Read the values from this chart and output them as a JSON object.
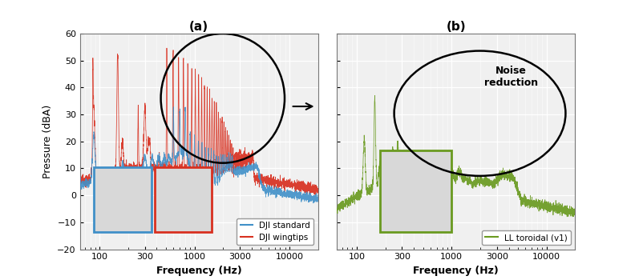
{
  "title_a": "(a)",
  "title_b": "(b)",
  "ylabel": "Pressure (dBA)",
  "xlabel": "Frequency (Hz)",
  "ylim": [
    -20,
    60
  ],
  "xlim": [
    60,
    20000
  ],
  "xticks": [
    100,
    300,
    1000,
    3000,
    10000
  ],
  "xtick_labels": [
    "100",
    "300",
    "1000",
    "3000",
    "10000"
  ],
  "yticks": [
    -20,
    -10,
    0,
    10,
    20,
    30,
    40,
    50,
    60
  ],
  "color_blue": "#4090c8",
  "color_red": "#d83020",
  "color_green": "#6a9a20",
  "legend_a": [
    "DJI standard",
    "DJI wingtips"
  ],
  "legend_b": [
    "LL toroidal (v1)"
  ],
  "box_blue_color": "#4090c8",
  "box_red_color": "#d83020",
  "box_green_color": "#6a9a20",
  "noise_reduction_text": "Noise\nreduction",
  "bg_color": "#f0f0f0"
}
